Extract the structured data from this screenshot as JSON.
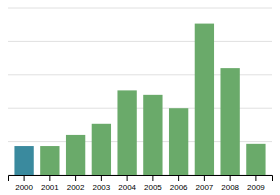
{
  "chart_data": {
    "type": "bar",
    "categories": [
      "2000",
      "2001",
      "2002",
      "2003",
      "2004",
      "2005",
      "2006",
      "2007",
      "2008",
      "2009"
    ],
    "values": [
      13,
      13,
      18,
      23,
      38,
      36,
      30,
      68,
      48,
      14
    ],
    "colors": [
      "#3a8a9e",
      "#6aaa6a",
      "#6aaa6a",
      "#6aaa6a",
      "#6aaa6a",
      "#6aaa6a",
      "#6aaa6a",
      "#6aaa6a",
      "#6aaa6a",
      "#6aaa6a"
    ],
    "ylim": [
      0,
      75
    ],
    "yticks": [
      0,
      15,
      30,
      45,
      60,
      75
    ],
    "grid": true,
    "tick_labels": "x"
  }
}
